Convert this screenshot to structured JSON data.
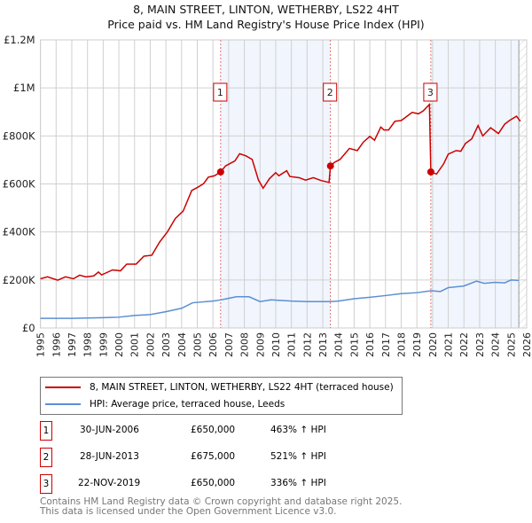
{
  "chart_data": {
    "type": "line",
    "title": "8, MAIN STREET, LINTON, WETHERBY, LS22 4HT",
    "subtitle": "Price paid vs. HM Land Registry's House Price Index (HPI)",
    "xlim": [
      1995,
      2026
    ],
    "ylim": [
      0,
      1200000
    ],
    "y_ticks": [
      {
        "v": 0,
        "label": "£0"
      },
      {
        "v": 200000,
        "label": "£200K"
      },
      {
        "v": 400000,
        "label": "£400K"
      },
      {
        "v": 600000,
        "label": "£600K"
      },
      {
        "v": 800000,
        "label": "£800K"
      },
      {
        "v": 1000000,
        "label": "£1M"
      },
      {
        "v": 1200000,
        "label": "£1.2M"
      }
    ],
    "x_ticks": [
      "1995",
      "1996",
      "1997",
      "1998",
      "1999",
      "2000",
      "2001",
      "2002",
      "2003",
      "2004",
      "2005",
      "2006",
      "2007",
      "2008",
      "2009",
      "2010",
      "2011",
      "2012",
      "2013",
      "2014",
      "2015",
      "2016",
      "2017",
      "2018",
      "2019",
      "2020",
      "2021",
      "2022",
      "2023",
      "2024",
      "2025",
      "2026"
    ],
    "grid": true,
    "shaded_ranges": [
      [
        2006.49,
        2013.49
      ],
      [
        2019.89,
        2025.5
      ]
    ],
    "future_hatch_from": 2025.5,
    "series": [
      {
        "name": "8, MAIN STREET, LINTON, WETHERBY, LS22 4HT (terraced house)",
        "color": "#cc0000",
        "unit": "K",
        "x": [
          1995.0,
          1995.45,
          1996.1,
          1996.6,
          1997.1,
          1997.5,
          1997.9,
          1998.4,
          1998.7,
          1998.9,
          1999.6,
          2000.1,
          2000.5,
          2001.1,
          2001.6,
          2002.1,
          2002.6,
          2003.1,
          2003.6,
          2004.1,
          2004.65,
          2005.0,
          2005.4,
          2005.7,
          2006.1,
          2006.49,
          2006.8,
          2007.4,
          2007.7,
          2008.1,
          2008.5,
          2008.9,
          2009.2,
          2009.6,
          2010.0,
          2010.2,
          2010.7,
          2010.9,
          2011.5,
          2011.9,
          2012.4,
          2012.9,
          2013.4,
          2013.49,
          2013.75,
          2014.1,
          2014.7,
          2015.2,
          2015.6,
          2016.0,
          2016.3,
          2016.7,
          2016.9,
          2017.2,
          2017.6,
          2018.0,
          2018.7,
          2019.1,
          2019.4,
          2019.8,
          2019.89,
          2020.25,
          2020.7,
          2021.0,
          2021.5,
          2021.8,
          2022.1,
          2022.5,
          2022.9,
          2023.2,
          2023.7,
          2024.2,
          2024.6,
          2024.9,
          2025.35,
          2025.6
        ],
        "y": [
          205,
          213,
          199,
          213,
          205,
          220,
          213,
          217,
          233,
          221,
          242,
          238,
          266,
          266,
          299,
          303,
          358,
          401,
          456,
          487,
          573,
          585,
          601,
          628,
          634,
          650,
          675,
          696,
          726,
          717,
          702,
          616,
          582,
          622,
          647,
          634,
          655,
          631,
          626,
          616,
          626,
          614,
          606,
          675,
          690,
          702,
          748,
          739,
          775,
          798,
          782,
          837,
          825,
          825,
          861,
          864,
          898,
          892,
          904,
          931,
          650,
          641,
          683,
          724,
          739,
          736,
          769,
          788,
          843,
          800,
          834,
          810,
          849,
          864,
          882,
          861
        ]
      },
      {
        "name": "HPI: Average price, terraced house, Leeds",
        "color": "#5b8fd4",
        "unit": "K",
        "x": [
          1995,
          1997,
          1999,
          2000,
          2001,
          2002,
          2003,
          2004,
          2004.7,
          2006,
          2006.5,
          2007.5,
          2008.3,
          2009,
          2009.7,
          2011,
          2012,
          2013.5,
          2014,
          2015,
          2016,
          2017,
          2018,
          2019,
          2019.9,
          2020.5,
          2021,
          2022,
          2022.8,
          2023.3,
          2024,
          2024.6,
          2025,
          2025.5
        ],
        "y": [
          40,
          40,
          43,
          45,
          52,
          56,
          68,
          82,
          105,
          112,
          117,
          130,
          130,
          110,
          117,
          112,
          110,
          110,
          112,
          122,
          128,
          135,
          143,
          147,
          155,
          152,
          168,
          175,
          195,
          186,
          190,
          188,
          200,
          198
        ]
      }
    ],
    "transactions": [
      {
        "label": "1",
        "date": "30-JUN-2006",
        "x": 2006.49,
        "price": "£650,000",
        "value": 650,
        "hpi": "463% ↑ HPI"
      },
      {
        "label": "2",
        "date": "28-JUN-2013",
        "x": 2013.49,
        "price": "£675,000",
        "value": 675,
        "hpi": "521% ↑ HPI"
      },
      {
        "label": "3",
        "date": "22-NOV-2019",
        "x": 2019.89,
        "price": "£650,000",
        "value": 650,
        "hpi": "336% ↑ HPI"
      }
    ],
    "legend_placement": "below"
  },
  "footer": {
    "line1": "Contains HM Land Registry data © Crown copyright and database right 2025.",
    "line2": "This data is licensed under the Open Government Licence v3.0."
  }
}
